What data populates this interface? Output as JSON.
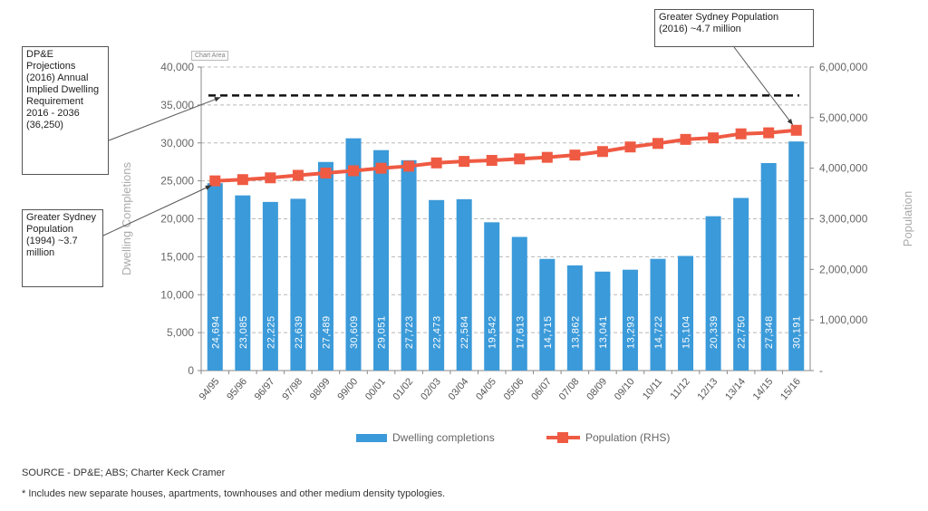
{
  "chart_data": {
    "type": "bar",
    "categories": [
      "94/95",
      "95/96",
      "96/97",
      "97/98",
      "98/99",
      "99/00",
      "00/01",
      "01/02",
      "02/03",
      "03/04",
      "04/05",
      "05/06",
      "06/07",
      "07/08",
      "08/09",
      "09/10",
      "10/11",
      "11/12",
      "12/13",
      "13/14",
      "14/15",
      "15/16"
    ],
    "series": [
      {
        "name": "Dwelling completions",
        "type": "bar",
        "axis": "left",
        "color": "#3b9ad9",
        "values": [
          24694,
          23085,
          22225,
          22639,
          27489,
          30609,
          29051,
          27723,
          22473,
          22584,
          19542,
          17613,
          14715,
          13862,
          13041,
          13293,
          14722,
          15104,
          20339,
          22750,
          27348,
          30191
        ],
        "labels": [
          "24,694",
          "23,085",
          "22,225",
          "22,639",
          "27,489",
          "30,609",
          "29,051",
          "27,723",
          "22,473",
          "22,584",
          "19,542",
          "17,613",
          "14,715",
          "13,862",
          "13,041",
          "13,293",
          "14,722",
          "15,104",
          "20,339",
          "22,750",
          "27,348",
          "30,191"
        ]
      },
      {
        "name": "Population (RHS)",
        "type": "line",
        "axis": "right",
        "color": "#ef5a43",
        "values": [
          3750000,
          3775000,
          3810000,
          3860000,
          3905000,
          3950000,
          4000000,
          4040000,
          4105000,
          4135000,
          4155000,
          4185000,
          4215000,
          4260000,
          4330000,
          4420000,
          4490000,
          4570000,
          4600000,
          4680000,
          4700000,
          4750000
        ]
      }
    ],
    "reference_line": {
      "value": 36250,
      "axis": "left",
      "style": "dashed",
      "color": "#111111"
    },
    "ylabel": "Dwelling Completions",
    "ylim": [
      0,
      40000
    ],
    "y_ticks": [
      0,
      5000,
      10000,
      15000,
      20000,
      25000,
      30000,
      35000,
      40000
    ],
    "y_tick_labels": [
      "0",
      "5,000",
      "10,000",
      "15,000",
      "20,000",
      "25,000",
      "30,000",
      "35,000",
      "40,000"
    ],
    "y2label": "Population",
    "y2lim": [
      0,
      6000000
    ],
    "y2_ticks": [
      0,
      1000000,
      2000000,
      3000000,
      4000000,
      5000000,
      6000000
    ],
    "y2_tick_labels": [
      "-",
      "1,000,000",
      "2,000,000",
      "3,000,000",
      "4,000,000",
      "5,000,000",
      "6,000,000"
    ],
    "grid": true,
    "legend_position": "bottom"
  },
  "annotations": [
    "DP&E Projections (2016) Annual Implied Dwelling Requirement 2016 - 2036 (36,250)",
    "Greater Sydney Population (1994) ~3.7 million",
    "Greater Sydney Population (2016) ~4.7 million"
  ],
  "chart_area_tag": "Chart Area",
  "source": "SOURCE - DP&E; ABS; Charter Keck Cramer",
  "footnote": "*   Includes new separate houses, apartments, townhouses and other medium density typologies."
}
